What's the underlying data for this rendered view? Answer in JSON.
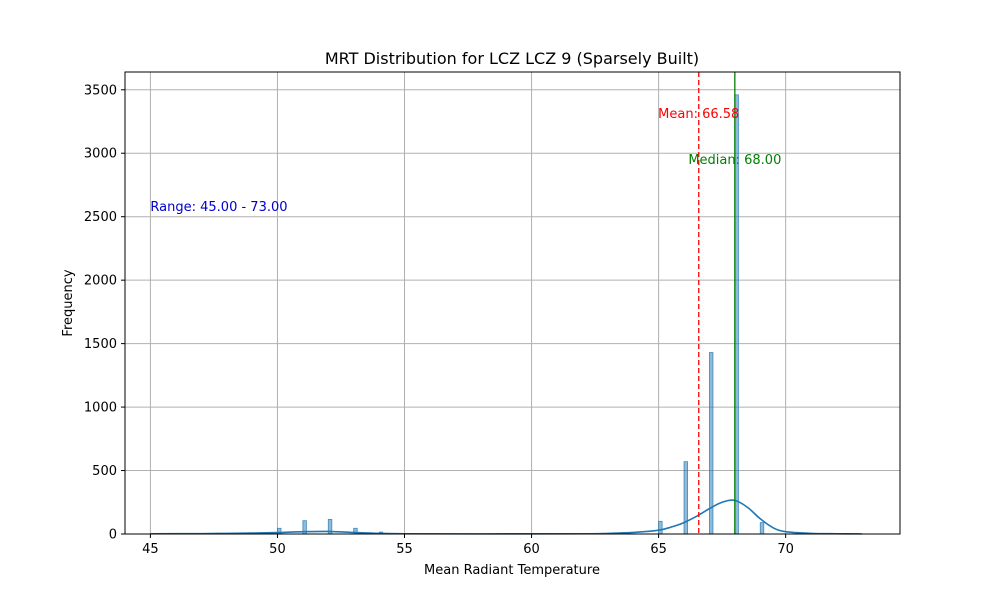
{
  "chart_data": {
    "type": "bar",
    "title": "MRT Distribution for LCZ LCZ 9 (Sparsely Built)",
    "xlabel": "Mean Radiant Temperature",
    "ylabel": "Frequency",
    "xlim": [
      44.0,
      74.5
    ],
    "ylim": [
      0,
      3640
    ],
    "xticks": [
      45,
      50,
      55,
      60,
      65,
      70
    ],
    "yticks": [
      0,
      500,
      1000,
      1500,
      2000,
      2500,
      3000,
      3500
    ],
    "grid": true,
    "bar_color": "#1f77b4",
    "histogram": {
      "name": "",
      "bin_width": 0.14,
      "x": [
        50,
        51,
        52,
        53,
        54,
        65,
        66,
        67,
        68,
        69
      ],
      "values": [
        45,
        105,
        115,
        45,
        15,
        100,
        570,
        1430,
        3460,
        90
      ]
    },
    "kde": {
      "color": "#1f77b4",
      "x": [
        45,
        47,
        48,
        49,
        50,
        51,
        52,
        53,
        54,
        55,
        58,
        62,
        63,
        64,
        65,
        65.5,
        66,
        66.5,
        67,
        67.5,
        68,
        68.5,
        69,
        69.5,
        70,
        71,
        72,
        73
      ],
      "y": [
        2,
        3,
        5,
        7,
        11,
        18,
        20,
        12,
        5,
        2,
        1,
        2,
        5,
        12,
        30,
        55,
        90,
        140,
        200,
        250,
        265,
        210,
        120,
        50,
        18,
        5,
        2,
        1
      ]
    },
    "reference_lines": [
      {
        "label": "Mean: 66.58",
        "value": 66.58,
        "color": "#ff0000",
        "style": "dashed"
      },
      {
        "label": "Median: 68.00",
        "value": 68.0,
        "color": "#008000",
        "style": "solid"
      }
    ],
    "annotations": [
      {
        "text": "Range: 45.00 - 73.00",
        "color": "#0000cc"
      }
    ]
  }
}
